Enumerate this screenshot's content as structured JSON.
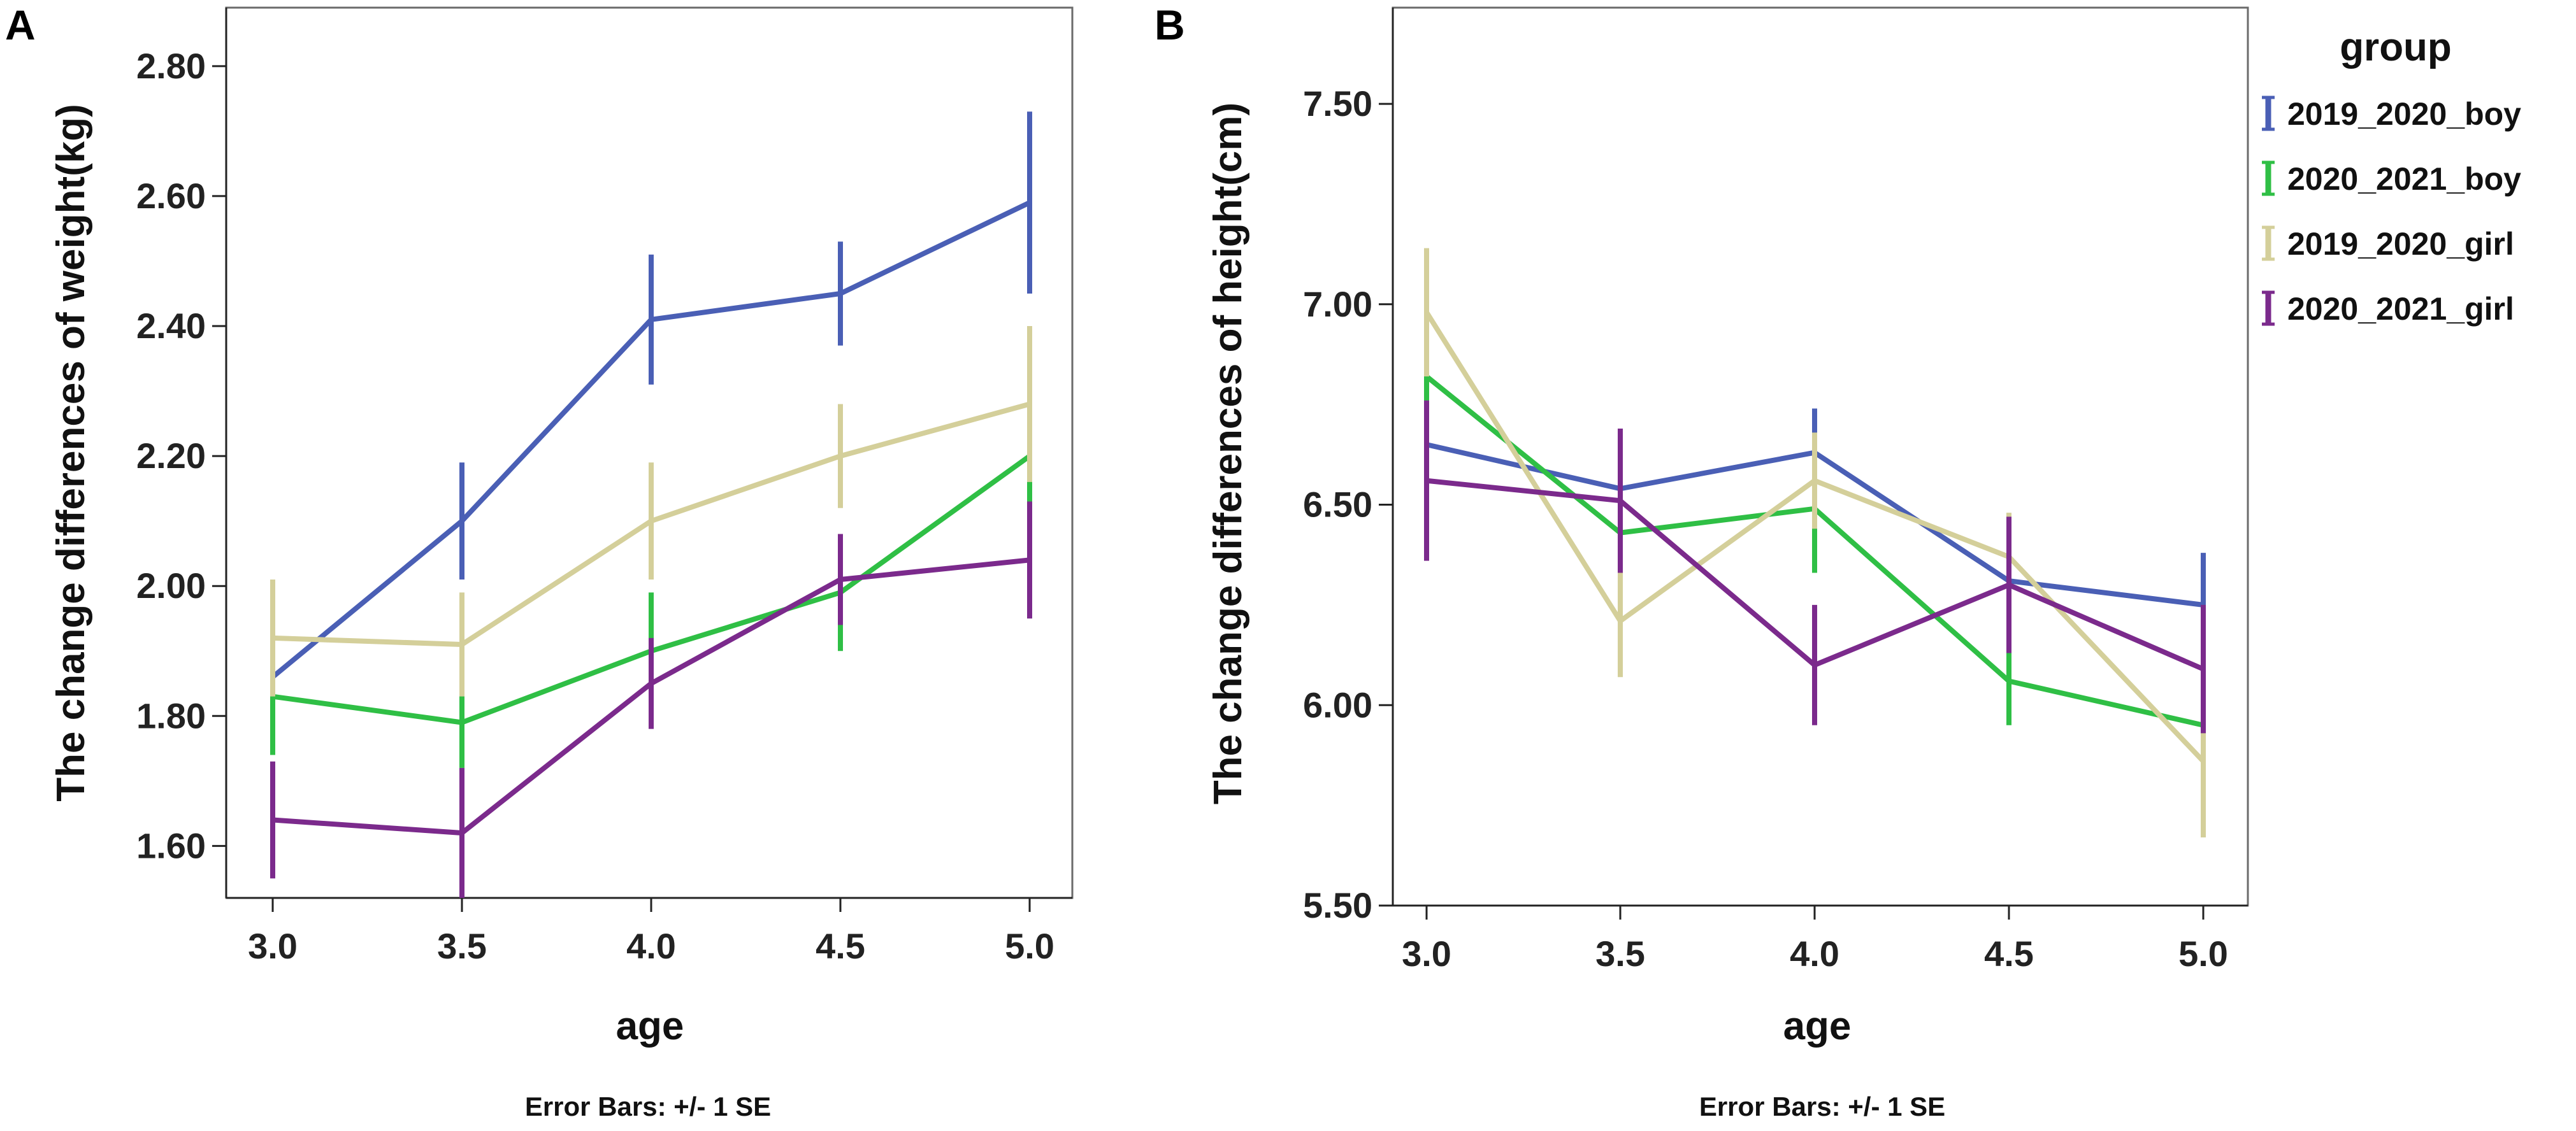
{
  "chart_data": [
    {
      "type": "line",
      "panel": "A",
      "xlabel": "age",
      "ylabel": "The change differences of weight(kg)",
      "footnote": "Error Bars: +/- 1 SE",
      "x": [
        3.0,
        3.5,
        4.0,
        4.5,
        5.0
      ],
      "x_tick_labels": [
        "3.0",
        "3.5",
        "4.0",
        "4.5",
        "5.0"
      ],
      "ylim": [
        1.52,
        2.89
      ],
      "y_ticks": [
        1.6,
        1.8,
        2.0,
        2.2,
        2.4,
        2.6,
        2.8
      ],
      "y_tick_labels": [
        "1.60",
        "1.80",
        "2.00",
        "2.20",
        "2.40",
        "2.60",
        "2.80"
      ],
      "series": [
        {
          "name": "2019_2020_boy",
          "color": "#4a5fb5",
          "values": [
            1.86,
            2.1,
            2.41,
            2.45,
            2.59
          ],
          "se": [
            0.05,
            0.09,
            0.1,
            0.08,
            0.14
          ]
        },
        {
          "name": "2020_2021_boy",
          "color": "#2fbf45",
          "values": [
            1.83,
            1.79,
            1.9,
            1.99,
            2.2
          ],
          "se": [
            0.09,
            0.07,
            0.09,
            0.09,
            0.1
          ]
        },
        {
          "name": "2019_2020_girl",
          "color": "#d4cf9a",
          "values": [
            1.92,
            1.91,
            2.1,
            2.2,
            2.28
          ],
          "se": [
            0.09,
            0.08,
            0.09,
            0.08,
            0.12
          ]
        },
        {
          "name": "2020_2021_girl",
          "color": "#7b2a8c",
          "values": [
            1.64,
            1.62,
            1.85,
            2.01,
            2.04
          ],
          "se": [
            0.09,
            0.1,
            0.07,
            0.07,
            0.09
          ]
        }
      ]
    },
    {
      "type": "line",
      "panel": "B",
      "xlabel": "age",
      "ylabel": "The change differences of height(cm)",
      "footnote": "Error Bars: +/- 1 SE",
      "x": [
        3.0,
        3.5,
        4.0,
        4.5,
        5.0
      ],
      "x_tick_labels": [
        "3.0",
        "3.5",
        "4.0",
        "4.5",
        "5.0"
      ],
      "ylim": [
        5.5,
        7.74
      ],
      "y_ticks": [
        5.5,
        6.0,
        6.5,
        7.0,
        7.5
      ],
      "y_tick_labels": [
        "5.50",
        "6.00",
        "6.50",
        "7.00",
        "7.50"
      ],
      "series": [
        {
          "name": "2019_2020_boy",
          "color": "#4a5fb5",
          "values": [
            6.65,
            6.54,
            6.63,
            6.31,
            6.25
          ],
          "se": [
            0.1,
            0.1,
            0.11,
            0.1,
            0.13
          ]
        },
        {
          "name": "2020_2021_boy",
          "color": "#2fbf45",
          "values": [
            6.82,
            6.43,
            6.49,
            6.06,
            5.95
          ],
          "se": [
            0.12,
            0.1,
            0.16,
            0.11,
            0.1
          ]
        },
        {
          "name": "2019_2020_girl",
          "color": "#d4cf9a",
          "values": [
            6.98,
            6.21,
            6.56,
            6.37,
            5.86
          ],
          "se": [
            0.16,
            0.14,
            0.12,
            0.11,
            0.19
          ]
        },
        {
          "name": "2020_2021_girl",
          "color": "#7b2a8c",
          "values": [
            6.56,
            6.51,
            6.1,
            6.3,
            6.09
          ],
          "se": [
            0.2,
            0.18,
            0.15,
            0.17,
            0.16
          ]
        }
      ]
    }
  ],
  "legend": {
    "title": "group",
    "items": [
      {
        "label": "2019_2020_boy",
        "color": "#4a5fb5"
      },
      {
        "label": "2020_2021_boy",
        "color": "#2fbf45"
      },
      {
        "label": "2019_2020_girl",
        "color": "#d4cf9a"
      },
      {
        "label": "2020_2021_girl",
        "color": "#7b2a8c"
      }
    ]
  }
}
